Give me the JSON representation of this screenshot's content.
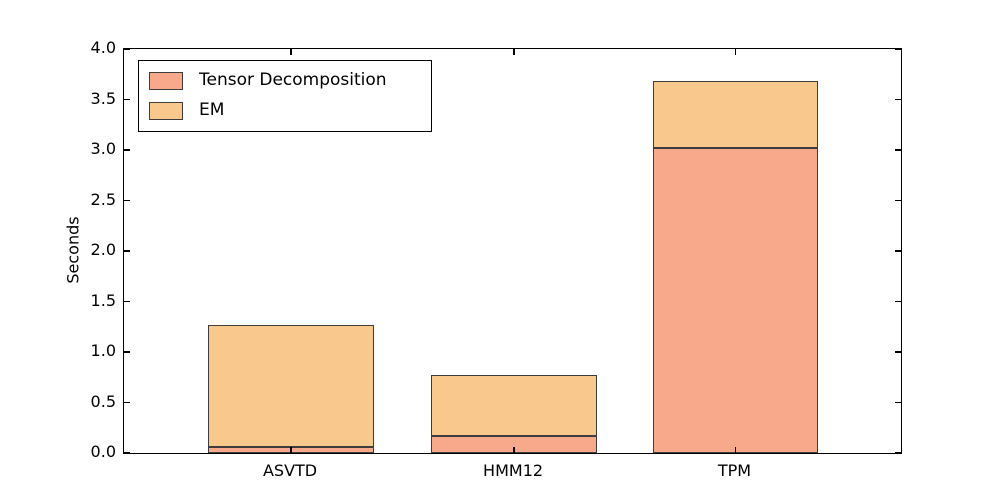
{
  "chart_data": {
    "type": "bar",
    "stacked": true,
    "title": "",
    "xlabel": "",
    "ylabel": "Seconds",
    "categories": [
      "ASVTD",
      "HMM12",
      "TPM"
    ],
    "series": [
      {
        "name": "Tensor Decomposition",
        "color": "#f8a98b",
        "values": [
          0.06,
          0.17,
          3.02
        ]
      },
      {
        "name": "EM",
        "color": "#f8c88c",
        "values": [
          1.21,
          0.6,
          0.66
        ]
      }
    ],
    "stack_totals": [
      1.27,
      0.77,
      3.68
    ],
    "ylim": [
      0,
      4.0
    ],
    "yticks": [
      0,
      0.5,
      1.0,
      1.5,
      2.0,
      2.5,
      3.0,
      3.5,
      4.0
    ],
    "ytick_labels": [
      "0.0",
      "0.5",
      "1.0",
      "1.5",
      "2.0",
      "2.5",
      "3.0",
      "3.5",
      "4.0"
    ],
    "grid": false,
    "legend_position": "upper-left",
    "axis_color": "#000000",
    "bar_edge_color": "#3d3d3d",
    "layout": {
      "bar_center_fracs": [
        0.215,
        0.502,
        0.787
      ],
      "bar_width_frac": 0.2125
    }
  }
}
